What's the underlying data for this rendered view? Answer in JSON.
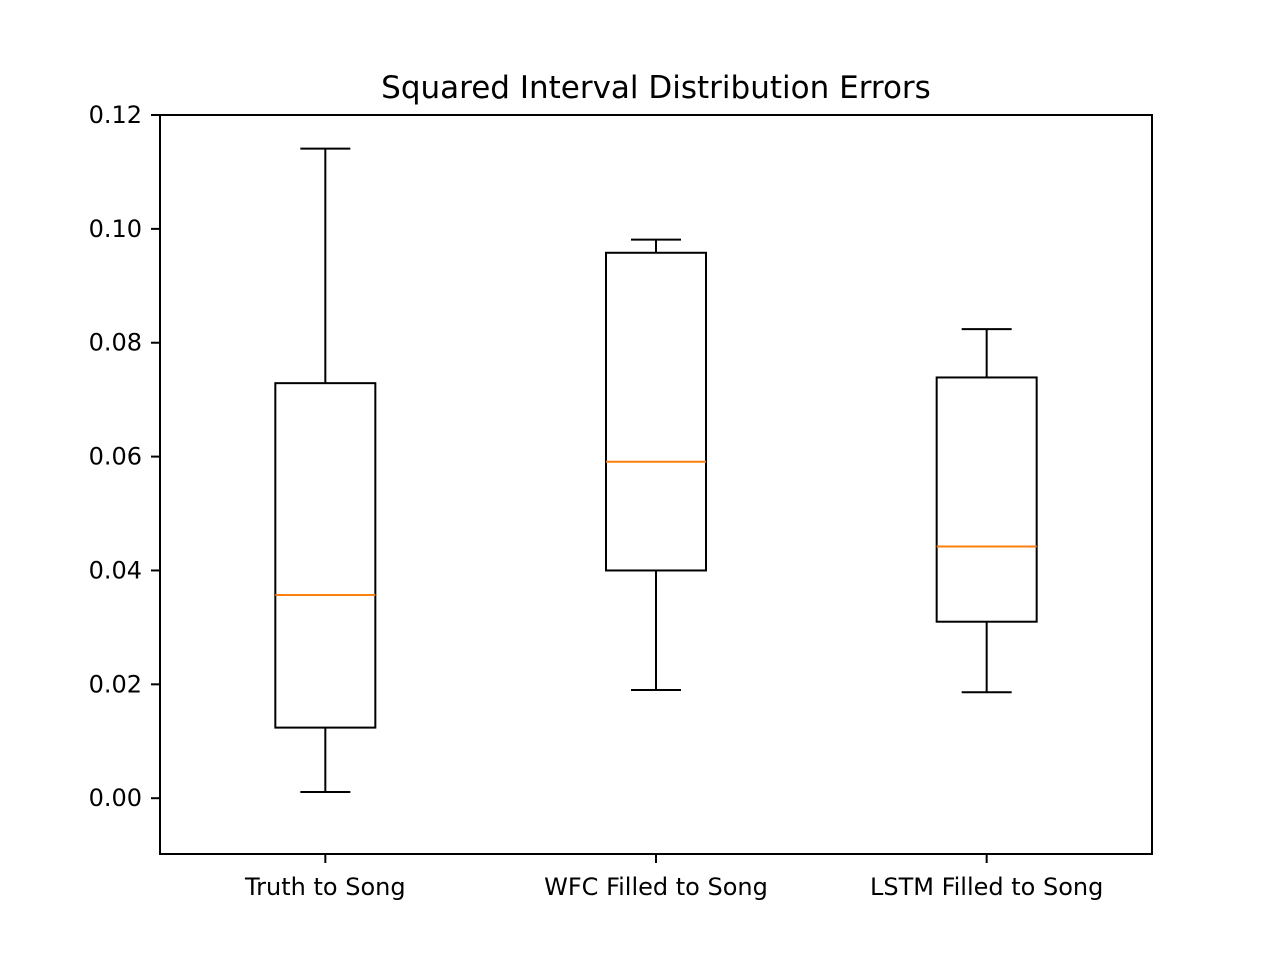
{
  "chart_data": {
    "type": "box",
    "title": "Squared Interval Distribution Errors",
    "xlabel": "",
    "ylabel": "",
    "ylim": [
      -0.0098,
      0.12
    ],
    "yticks": [
      0.0,
      0.02,
      0.04,
      0.06,
      0.08,
      0.1,
      0.12
    ],
    "ytick_labels": [
      "0.00",
      "0.02",
      "0.04",
      "0.06",
      "0.08",
      "0.10",
      "0.12"
    ],
    "grid": false,
    "colors": {
      "box": "#000000",
      "median": "#ff7f0e",
      "whisker": "#000000"
    },
    "categories": [
      "Truth to Song",
      "WFC Filled to Song",
      "LSTM Filled to Song"
    ],
    "boxes": [
      {
        "label": "Truth to Song",
        "whisker_low": 0.0011,
        "q1": 0.0124,
        "median": 0.0357,
        "q3": 0.0729,
        "whisker_high": 0.1141
      },
      {
        "label": "WFC Filled to Song",
        "whisker_low": 0.019,
        "q1": 0.04,
        "median": 0.0591,
        "q3": 0.0958,
        "whisker_high": 0.0981
      },
      {
        "label": "LSTM Filled to Song",
        "whisker_low": 0.0186,
        "q1": 0.031,
        "median": 0.0442,
        "q3": 0.0739,
        "whisker_high": 0.0824
      }
    ]
  }
}
